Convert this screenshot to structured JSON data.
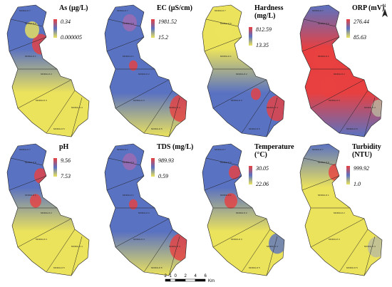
{
  "panels": [
    {
      "title": [
        "As (µg/L)"
      ],
      "max": "0.34",
      "min": "0.000005"
    },
    {
      "title": [
        "EC (µS/cm)"
      ],
      "max": "1981.52",
      "min": "15.2"
    },
    {
      "title": [
        "Hardness",
        "(mg/L)"
      ],
      "max": "812.59",
      "min": "13.35"
    },
    {
      "title": [
        "ORP (mV)"
      ],
      "max": "276.44",
      "min": "85.63"
    },
    {
      "title": [
        "pH"
      ],
      "max": "9.56",
      "min": "7.53"
    },
    {
      "title": [
        "TDS (mg/L)"
      ],
      "max": "989.93",
      "min": "0.59"
    },
    {
      "title": [
        "Temperature",
        "(°C)"
      ],
      "max": "30.05",
      "min": "22.06"
    },
    {
      "title": [
        "Turbidity",
        "(NTU)"
      ],
      "max": "999.92",
      "min": "1.0"
    }
  ],
  "modules": [
    "MODULO 7",
    "MODULO 6",
    "MODULO 1",
    "MODULO 2",
    "MODULO 3",
    "MODULO 4",
    "MODULO 5"
  ],
  "scale": {
    "ticks": [
      "2",
      "1",
      "0",
      "2",
      "4",
      "6"
    ],
    "unit": "Km"
  },
  "north": "N"
}
